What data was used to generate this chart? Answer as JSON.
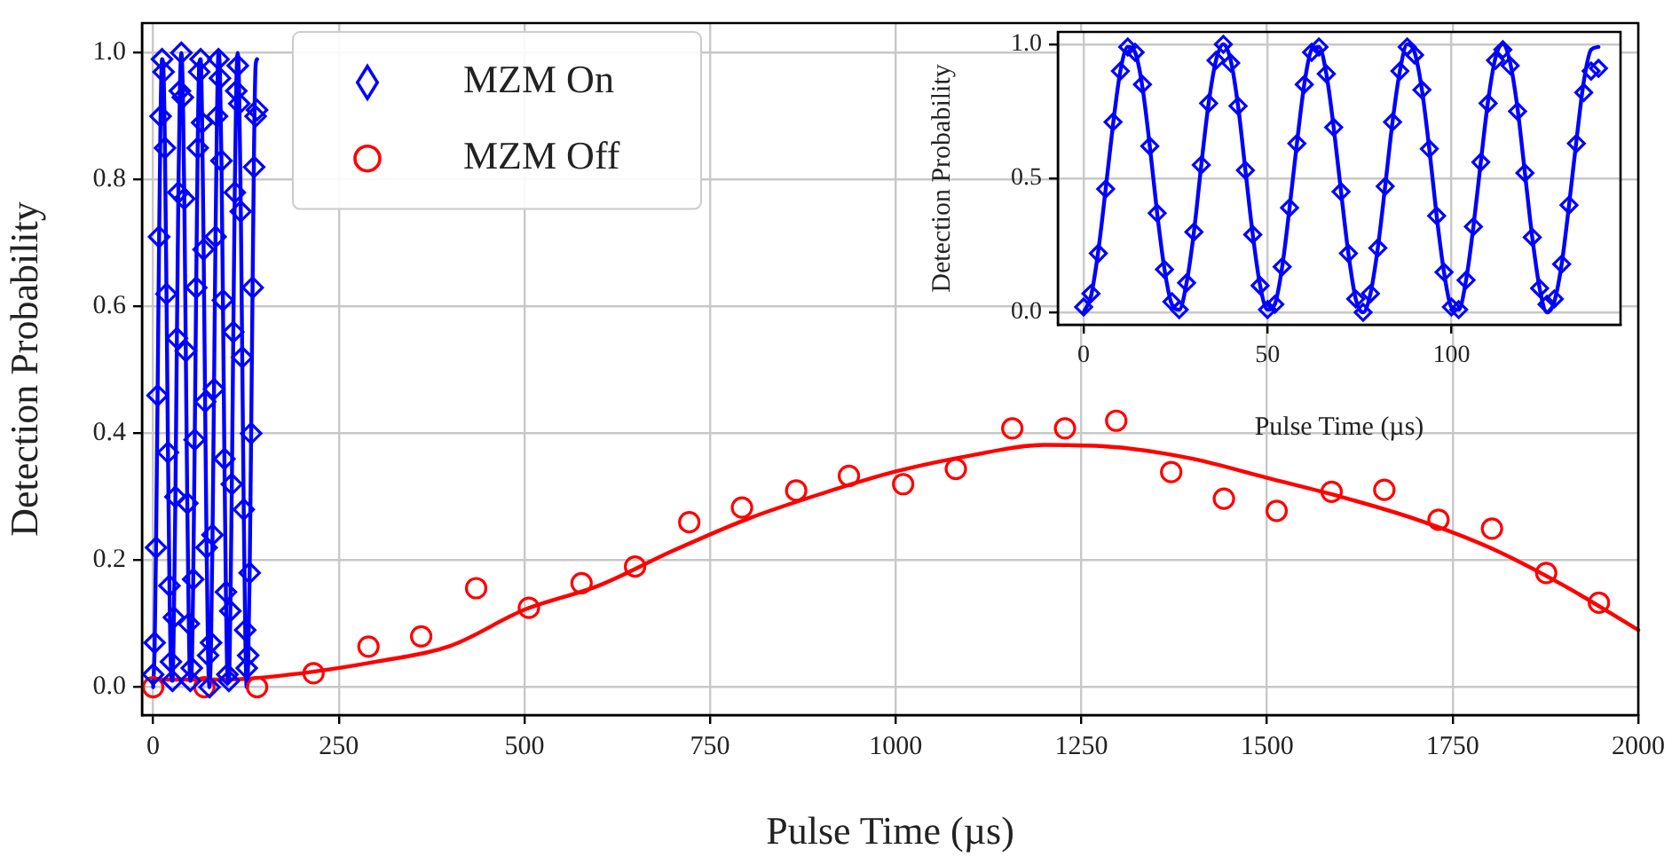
{
  "chart_data": [
    {
      "type": "scatter",
      "xlabel": "Pulse Time (µs)",
      "ylabel": "Detection Probability",
      "xlim": [
        -15,
        2000
      ],
      "ylim": [
        -0.044,
        1.047
      ],
      "xticks": [
        0,
        250,
        500,
        750,
        1000,
        1250,
        1500,
        1750,
        2000
      ],
      "yticks": [
        {
          "value": 0,
          "label": "0.0"
        },
        {
          "value": 0.2,
          "label": "0.2"
        },
        {
          "value": 0.4,
          "label": "0.4"
        },
        {
          "value": 0.6,
          "label": "0.6"
        },
        {
          "value": 0.8,
          "label": "0.8"
        },
        {
          "value": 1,
          "label": "1.0"
        }
      ],
      "grid": true,
      "legend": "top left",
      "series": [
        {
          "name": "MZM On",
          "color": "#0000ff",
          "marker": "diamond",
          "x": [
            0,
            2,
            4,
            6,
            8,
            10,
            12,
            14,
            16,
            18,
            20,
            22,
            24,
            26,
            28,
            30,
            32,
            34,
            36,
            38,
            40,
            42,
            44,
            46,
            48,
            50,
            52,
            54,
            56,
            58,
            60,
            62,
            64,
            66,
            68,
            70,
            72,
            74,
            76,
            78,
            80,
            82,
            84,
            86,
            88,
            90,
            92,
            94,
            96,
            98,
            100,
            102,
            104,
            106,
            108,
            110,
            112,
            114,
            116,
            118,
            120,
            122,
            124,
            126,
            128,
            130,
            132,
            134,
            136,
            138,
            140
          ],
          "values": [
            0.02,
            0.07,
            0.22,
            0.46,
            0.71,
            0.9,
            0.99,
            0.97,
            0.85,
            0.62,
            0.37,
            0.16,
            0.04,
            0.01,
            0.11,
            0.3,
            0.55,
            0.78,
            0.94,
            1.0,
            0.93,
            0.77,
            0.53,
            0.29,
            0.1,
            0.01,
            0.03,
            0.17,
            0.39,
            0.63,
            0.85,
            0.97,
            0.99,
            0.89,
            0.69,
            0.45,
            0.22,
            0.05,
            0.0,
            0.07,
            0.24,
            0.47,
            0.71,
            0.9,
            0.99,
            0.96,
            0.83,
            0.61,
            0.36,
            0.15,
            0.02,
            0.01,
            0.12,
            0.32,
            0.56,
            0.78,
            0.94,
            0.98,
            0.92,
            0.75,
            0.52,
            0.28,
            0.09,
            0.03,
            0.05,
            0.18,
            0.4,
            0.63,
            0.82,
            0.9,
            0.91
          ]
        },
        {
          "type": "line",
          "color": "#0000ff",
          "marker": "none",
          "x": [
            0,
            2,
            4,
            6,
            8,
            10,
            12,
            14,
            16,
            18,
            20,
            22,
            24,
            26,
            28,
            30,
            32,
            34,
            36,
            38,
            40,
            42,
            44,
            46,
            48,
            50,
            52,
            54,
            56,
            58,
            60,
            62,
            64,
            66,
            68,
            70,
            72,
            74,
            76,
            78,
            80,
            82,
            84,
            86,
            88,
            90,
            92,
            94,
            96,
            98,
            100,
            102,
            104,
            106,
            108,
            110,
            112,
            114,
            116,
            118,
            120,
            122,
            124,
            126,
            128,
            130,
            132,
            134,
            136,
            138,
            140
          ],
          "values": [
            0,
            0.06,
            0.23,
            0.46,
            0.7,
            0.9,
            0.99,
            0.97,
            0.84,
            0.62,
            0.37,
            0.16,
            0.03,
            0.01,
            0.11,
            0.3,
            0.55,
            0.78,
            0.94,
            1.0,
            0.94,
            0.77,
            0.53,
            0.29,
            0.1,
            0.01,
            0.03,
            0.17,
            0.39,
            0.63,
            0.85,
            0.98,
            0.99,
            0.89,
            0.69,
            0.45,
            0.22,
            0.05,
            0.0,
            0.07,
            0.24,
            0.47,
            0.71,
            0.9,
            1.0,
            0.97,
            0.83,
            0.61,
            0.36,
            0.15,
            0.02,
            0.01,
            0.12,
            0.32,
            0.56,
            0.79,
            0.95,
            1.0,
            0.93,
            0.76,
            0.52,
            0.28,
            0.09,
            0.0,
            0.04,
            0.18,
            0.4,
            0.64,
            0.86,
            0.98,
            0.99
          ]
        },
        {
          "name": "MZM Off",
          "color": "#ff0000",
          "marker": "circle",
          "x": [
            0,
            69,
            140,
            216,
            290,
            361,
            435,
            506,
            577,
            649,
            722,
            793,
            866,
            937,
            1010,
            1081,
            1157,
            1228,
            1297,
            1371,
            1442,
            1513,
            1587,
            1658,
            1731,
            1803,
            1876,
            1947
          ],
          "values": [
            0.0,
            0.0,
            0.0,
            0.022,
            0.064,
            0.08,
            0.156,
            0.125,
            0.164,
            0.19,
            0.26,
            0.283,
            0.31,
            0.333,
            0.32,
            0.344,
            0.408,
            0.408,
            0.42,
            0.339,
            0.297,
            0.278,
            0.308,
            0.311,
            0.264,
            0.25,
            0.18,
            0.133
          ]
        },
        {
          "type": "line",
          "color": "#ff0000",
          "marker": "none",
          "x": [
            0,
            100,
            200,
            300,
            400,
            500,
            600,
            700,
            800,
            900,
            1000,
            1100,
            1200,
            1300,
            1400,
            1500,
            1600,
            1700,
            1800,
            1900,
            2000
          ],
          "values": [
            0.012,
            0.012,
            0.022,
            0.04,
            0.065,
            0.122,
            0.16,
            0.215,
            0.265,
            0.305,
            0.34,
            0.365,
            0.382,
            0.378,
            0.36,
            0.33,
            0.3,
            0.265,
            0.22,
            0.16,
            0.09
          ]
        }
      ]
    },
    {
      "type": "scatter",
      "xlabel": "Pulse Time (µs)",
      "ylabel": "Detection Probability",
      "xlim": [
        -7,
        146
      ],
      "ylim": [
        -0.046,
        1.046
      ],
      "xticks": [
        0,
        50,
        100
      ],
      "yticks": [
        {
          "value": 0,
          "label": "0.0"
        },
        {
          "value": 0.5,
          "label": "0.5"
        },
        {
          "value": 1,
          "label": "1.0"
        }
      ],
      "grid": true,
      "series": [
        {
          "color": "#0000ff",
          "marker": "diamond",
          "x": [
            0,
            2,
            4,
            6,
            8,
            10,
            12,
            14,
            16,
            18,
            20,
            22,
            24,
            26,
            28,
            30,
            32,
            34,
            36,
            38,
            40,
            42,
            44,
            46,
            48,
            50,
            52,
            54,
            56,
            58,
            60,
            62,
            64,
            66,
            68,
            70,
            72,
            74,
            76,
            78,
            80,
            82,
            84,
            86,
            88,
            90,
            92,
            94,
            96,
            98,
            100,
            102,
            104,
            106,
            108,
            110,
            112,
            114,
            116,
            118,
            120,
            122,
            124,
            126,
            128,
            130,
            132,
            134,
            136,
            138,
            140
          ],
          "values": [
            0.02,
            0.07,
            0.22,
            0.46,
            0.71,
            0.9,
            0.99,
            0.97,
            0.85,
            0.62,
            0.37,
            0.16,
            0.04,
            0.01,
            0.11,
            0.3,
            0.55,
            0.78,
            0.94,
            1.0,
            0.93,
            0.77,
            0.53,
            0.29,
            0.1,
            0.01,
            0.03,
            0.17,
            0.39,
            0.63,
            0.85,
            0.97,
            0.99,
            0.89,
            0.69,
            0.45,
            0.22,
            0.05,
            0.0,
            0.07,
            0.24,
            0.47,
            0.71,
            0.9,
            0.99,
            0.96,
            0.83,
            0.61,
            0.36,
            0.15,
            0.02,
            0.01,
            0.12,
            0.32,
            0.56,
            0.78,
            0.94,
            0.98,
            0.92,
            0.75,
            0.52,
            0.28,
            0.09,
            0.03,
            0.05,
            0.18,
            0.4,
            0.63,
            0.82,
            0.9,
            0.91
          ]
        },
        {
          "type": "line",
          "color": "#0000ff",
          "marker": "none",
          "x": [
            0,
            2,
            4,
            6,
            8,
            10,
            12,
            14,
            16,
            18,
            20,
            22,
            24,
            26,
            28,
            30,
            32,
            34,
            36,
            38,
            40,
            42,
            44,
            46,
            48,
            50,
            52,
            54,
            56,
            58,
            60,
            62,
            64,
            66,
            68,
            70,
            72,
            74,
            76,
            78,
            80,
            82,
            84,
            86,
            88,
            90,
            92,
            94,
            96,
            98,
            100,
            102,
            104,
            106,
            108,
            110,
            112,
            114,
            116,
            118,
            120,
            122,
            124,
            126,
            128,
            130,
            132,
            134,
            136,
            138,
            140
          ],
          "values": [
            0,
            0.06,
            0.23,
            0.46,
            0.7,
            0.9,
            0.99,
            0.97,
            0.84,
            0.62,
            0.37,
            0.16,
            0.03,
            0.01,
            0.11,
            0.3,
            0.55,
            0.78,
            0.94,
            1.0,
            0.94,
            0.77,
            0.53,
            0.29,
            0.1,
            0.01,
            0.03,
            0.17,
            0.39,
            0.63,
            0.85,
            0.98,
            0.99,
            0.89,
            0.69,
            0.45,
            0.22,
            0.05,
            0.0,
            0.07,
            0.24,
            0.47,
            0.71,
            0.9,
            1.0,
            0.97,
            0.83,
            0.61,
            0.36,
            0.15,
            0.02,
            0.01,
            0.12,
            0.32,
            0.56,
            0.79,
            0.95,
            1.0,
            0.93,
            0.76,
            0.52,
            0.28,
            0.09,
            0.0,
            0.04,
            0.18,
            0.4,
            0.64,
            0.86,
            0.98,
            0.99
          ]
        }
      ]
    }
  ]
}
